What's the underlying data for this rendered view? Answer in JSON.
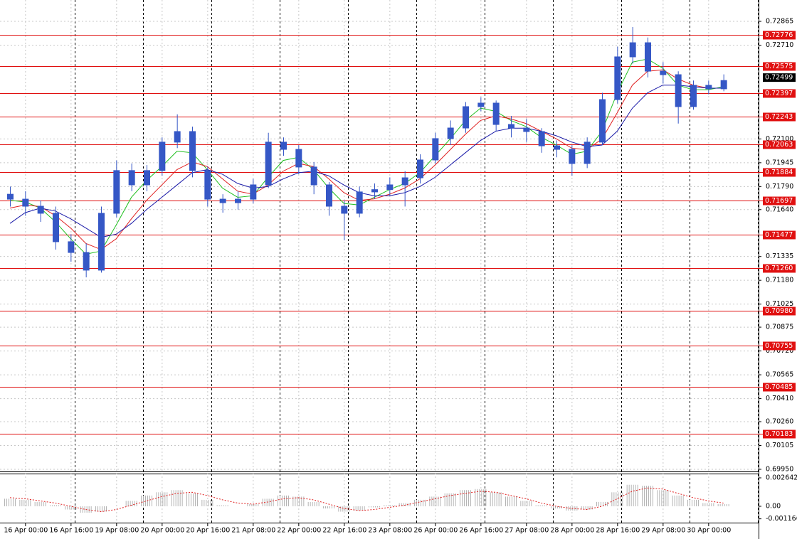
{
  "chart_data": [
    {
      "type": "candlestick",
      "categories": [
        null,
        "16 Apr 00:00",
        null,
        null,
        "16 Apr 16:00",
        null,
        null,
        "19 Apr 08:00",
        null,
        null,
        "20 Apr 00:00",
        null,
        null,
        "20 Apr 16:00",
        null,
        null,
        "21 Apr 08:00",
        null,
        null,
        "22 Apr 00:00",
        null,
        null,
        "22 Apr 16:00",
        null,
        null,
        "23 Apr 08:00",
        null,
        null,
        "26 Apr 00:00",
        null,
        null,
        "26 Apr 16:00",
        null,
        null,
        "27 Apr 08:00",
        null,
        null,
        "28 Apr 00:00",
        null,
        null,
        "28 Apr 16:00",
        null,
        null,
        "29 Apr 08:00",
        null,
        null,
        "30 Apr 00:00",
        null
      ],
      "open": [
        0.7174,
        0.71708,
        0.71662,
        0.71616,
        0.71431,
        0.71361,
        0.71246,
        0.71616,
        0.71894,
        0.71801,
        0.71894,
        0.72079,
        0.72148,
        0.71894,
        0.71708,
        0.71685,
        0.71708,
        0.71801,
        0.72079,
        0.72032,
        0.71917,
        0.71801,
        0.71662,
        0.71616,
        0.71755,
        0.7177,
        0.71801,
        0.71847,
        0.71963,
        0.72102,
        0.72171,
        0.7231,
        0.72333,
        0.72194,
        0.72171,
        0.72148,
        0.72055,
        0.72032,
        0.7194,
        0.72079,
        0.72356,
        0.72634,
        0.72726,
        0.72541,
        0.72518,
        0.7231,
        0.72449,
        0.72426
      ],
      "high": [
        0.7179,
        0.7176,
        0.717,
        0.7166,
        0.7148,
        0.7142,
        0.7166,
        0.7196,
        0.7194,
        0.7193,
        0.7211,
        0.7226,
        0.7218,
        0.7192,
        0.7174,
        0.7176,
        0.7184,
        0.7214,
        0.7211,
        0.7206,
        0.7195,
        0.7182,
        0.717,
        0.7179,
        0.7181,
        0.7185,
        0.7189,
        0.72,
        0.7214,
        0.7222,
        0.7234,
        0.7237,
        0.7235,
        0.7225,
        0.7223,
        0.7217,
        0.7209,
        0.7206,
        0.7211,
        0.724,
        0.727,
        0.72828,
        0.7276,
        0.726,
        0.7254,
        0.7248,
        0.7248,
        0.7252
      ],
      "low": [
        0.7166,
        0.716,
        0.7156,
        0.7138,
        0.713,
        0.71199,
        0.7123,
        0.7159,
        0.7176,
        0.7176,
        0.7186,
        0.7204,
        0.7185,
        0.7166,
        0.7162,
        0.7164,
        0.7168,
        0.7178,
        0.7199,
        0.7187,
        0.7174,
        0.716,
        0.7144,
        0.7159,
        0.7171,
        0.7173,
        0.7166,
        0.7181,
        0.7194,
        0.7206,
        0.7214,
        0.7228,
        0.7215,
        0.7211,
        0.7208,
        0.7201,
        0.7198,
        0.7186,
        0.7191,
        0.7206,
        0.7233,
        0.7259,
        0.725,
        0.7246,
        0.722,
        0.7229,
        0.7239,
        0.7241
      ],
      "close": [
        0.71708,
        0.71662,
        0.71616,
        0.71431,
        0.71361,
        0.71246,
        0.71616,
        0.71894,
        0.71801,
        0.71894,
        0.72079,
        0.72148,
        0.71894,
        0.71708,
        0.71685,
        0.71708,
        0.71801,
        0.72079,
        0.72032,
        0.71917,
        0.71801,
        0.71662,
        0.71616,
        0.71755,
        0.7177,
        0.71801,
        0.71847,
        0.71963,
        0.72102,
        0.72171,
        0.7231,
        0.72333,
        0.72194,
        0.72171,
        0.72148,
        0.72055,
        0.72032,
        0.7194,
        0.72079,
        0.72356,
        0.72634,
        0.72726,
        0.72541,
        0.72518,
        0.7231,
        0.72449,
        0.72426,
        0.7248
      ],
      "color": "#3557c6",
      "lines": [
        {
          "color": "#1fbf1f",
          "values": [
            0.717,
            0.7169,
            0.7165,
            0.7156,
            0.7145,
            0.7135,
            0.7137,
            0.7154,
            0.7172,
            0.7183,
            0.7192,
            0.7202,
            0.7201,
            0.719,
            0.7178,
            0.7172,
            0.7173,
            0.7185,
            0.7196,
            0.7198,
            0.719,
            0.7178,
            0.7168,
            0.7167,
            0.7172,
            0.7177,
            0.7181,
            0.7188,
            0.7199,
            0.721,
            0.7222,
            0.723,
            0.7228,
            0.7222,
            0.7218,
            0.7211,
            0.7206,
            0.72,
            0.7202,
            0.7215,
            0.724,
            0.726,
            0.7262,
            0.7256,
            0.7245,
            0.7242,
            0.7242,
            0.7244
          ]
        },
        {
          "color": "#e02020",
          "values": [
            0.7165,
            0.7167,
            0.7166,
            0.716,
            0.7152,
            0.7142,
            0.7138,
            0.7145,
            0.7158,
            0.717,
            0.718,
            0.719,
            0.7195,
            0.7192,
            0.7184,
            0.7176,
            0.7174,
            0.718,
            0.7189,
            0.7194,
            0.7192,
            0.7184,
            0.7175,
            0.717,
            0.7171,
            0.7174,
            0.7178,
            0.7184,
            0.7193,
            0.7203,
            0.7213,
            0.7222,
            0.7225,
            0.7223,
            0.722,
            0.7215,
            0.721,
            0.7204,
            0.7203,
            0.721,
            0.7227,
            0.7245,
            0.7254,
            0.7255,
            0.7249,
            0.7245,
            0.7243,
            0.7243
          ]
        },
        {
          "color": "#1a1aa8",
          "values": [
            0.7155,
            0.7162,
            0.7165,
            0.7163,
            0.7158,
            0.7152,
            0.7146,
            0.7148,
            0.7155,
            0.7164,
            0.7172,
            0.718,
            0.7188,
            0.719,
            0.7187,
            0.7181,
            0.7178,
            0.7179,
            0.7184,
            0.7188,
            0.7189,
            0.7186,
            0.718,
            0.7175,
            0.7173,
            0.7173,
            0.7175,
            0.7179,
            0.7185,
            0.7193,
            0.7201,
            0.7209,
            0.7215,
            0.7217,
            0.7217,
            0.7215,
            0.7212,
            0.7208,
            0.7205,
            0.7206,
            0.7215,
            0.723,
            0.724,
            0.7245,
            0.7245,
            0.7244,
            0.7243,
            0.7243
          ]
        }
      ],
      "ylim": [
        0.69936,
        0.73004
      ],
      "yticks": [
        0.72865,
        {
          "value": 0.7271,
          "label": "0.72710"
        },
        {
          "value": 0.721,
          "label": "0.72100"
        },
        0.71945,
        {
          "value": 0.7179,
          "label": "0.71790"
        },
        {
          "value": 0.7164,
          "label": "0.71640"
        },
        0.71335,
        {
          "value": 0.7118,
          "label": "0.71180"
        },
        0.71025,
        0.70875,
        {
          "value": 0.7072,
          "label": "0.70720"
        },
        0.70565,
        {
          "value": 0.7041,
          "label": "0.70410"
        },
        {
          "value": 0.7026,
          "label": "0.70260"
        },
        0.70105,
        {
          "value": 0.6995,
          "label": "0.69950"
        }
      ],
      "levels": [
        0.72776,
        0.72575,
        0.72397,
        0.72243,
        0.72063,
        0.71884,
        0.71697,
        0.71477,
        {
          "value": 0.7126,
          "label": "0.71260"
        },
        {
          "value": 0.7098,
          "label": "0.70980"
        },
        0.70755,
        0.70485,
        0.70183
      ],
      "level_color": "#e01010",
      "current_price": 0.72499,
      "grid": true
    },
    {
      "type": "bar",
      "values": [
        0.0007,
        0.0006,
        0.0004,
        0.0001,
        -0.0003,
        -0.0006,
        -0.0005,
        0,
        0.0005,
        0.001,
        0.0013,
        0.0015,
        0.0012,
        0.0006,
        0.0001,
        0,
        0.0002,
        0.0007,
        0.001,
        0.0009,
        0.0004,
        -0.0002,
        -0.0005,
        -0.0004,
        -0.0001,
        0.0001,
        0.0003,
        0.0006,
        0.0009,
        0.0012,
        0.0015,
        0.0016,
        0.0013,
        0.0009,
        0.0005,
        0.0001,
        -0.0002,
        -0.0004,
        -0.0003,
        0.0004,
        0.0013,
        0.002,
        0.0019,
        0.0015,
        0.001,
        0.0006,
        0.0003,
        0.0002
      ],
      "color": "#b4b4b4",
      "signal": {
        "color": "#e02020",
        "values": [
          0.0008,
          0.0007,
          0.0005,
          0.0003,
          0,
          -0.0003,
          -0.0005,
          -0.0003,
          0.0001,
          0.0005,
          0.0009,
          0.0012,
          0.0013,
          0.001,
          0.0006,
          0.0003,
          0.0002,
          0.0004,
          0.0007,
          0.0008,
          0.0006,
          0.0002,
          -0.0002,
          -0.0004,
          -0.0003,
          -0.0001,
          0.0001,
          0.0004,
          0.0007,
          0.001,
          0.0012,
          0.0014,
          0.0013,
          0.001,
          0.0007,
          0.0003,
          0,
          -0.0002,
          -0.0003,
          0,
          0.0007,
          0.0014,
          0.0017,
          0.0016,
          0.0012,
          0.0008,
          0.0005,
          0.0003
        ]
      },
      "ylim": [
        -0.00152,
        0.003038
      ],
      "yticks": [
        0.002642,
        {
          "value": 0,
          "label": "0.00"
        },
        -0.001166
      ]
    }
  ]
}
